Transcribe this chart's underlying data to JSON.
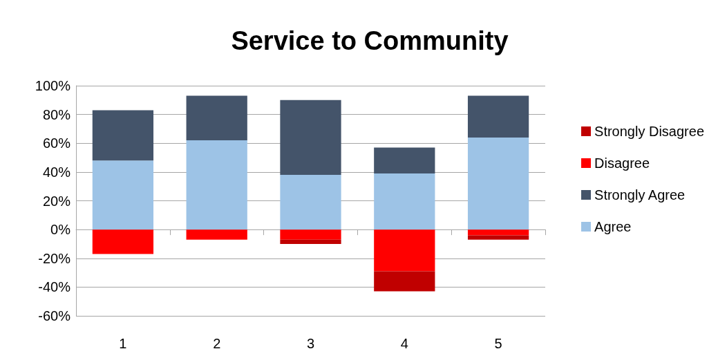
{
  "chart_data": {
    "type": "bar",
    "title": "Service to Community",
    "categories": [
      "1",
      "2",
      "3",
      "4",
      "5"
    ],
    "stacked": true,
    "series": [
      {
        "name": "Agree",
        "color": "#9dc3e6",
        "values": [
          48,
          62,
          38,
          39,
          64
        ]
      },
      {
        "name": "Strongly Agree",
        "color": "#44546a",
        "values": [
          35,
          31,
          52,
          18,
          29
        ]
      },
      {
        "name": "Disagree",
        "color": "#ff0000",
        "values": [
          -17,
          -7,
          -7,
          -29,
          -4
        ]
      },
      {
        "name": "Strongly Disagree",
        "color": "#c00000",
        "values": [
          0,
          0,
          -3,
          -14,
          -3
        ]
      }
    ],
    "ylim": [
      -60,
      100
    ],
    "yticks": [
      {
        "value": -60,
        "label": "-60%"
      },
      {
        "value": -40,
        "label": "-40%"
      },
      {
        "value": -20,
        "label": "-20%"
      },
      {
        "value": 0,
        "label": "0%"
      },
      {
        "value": 20,
        "label": "20%"
      },
      {
        "value": 40,
        "label": "40%"
      },
      {
        "value": 60,
        "label": "60%"
      },
      {
        "value": 80,
        "label": "80%"
      },
      {
        "value": 100,
        "label": "100%"
      }
    ],
    "grid": "y",
    "legend": "right"
  }
}
